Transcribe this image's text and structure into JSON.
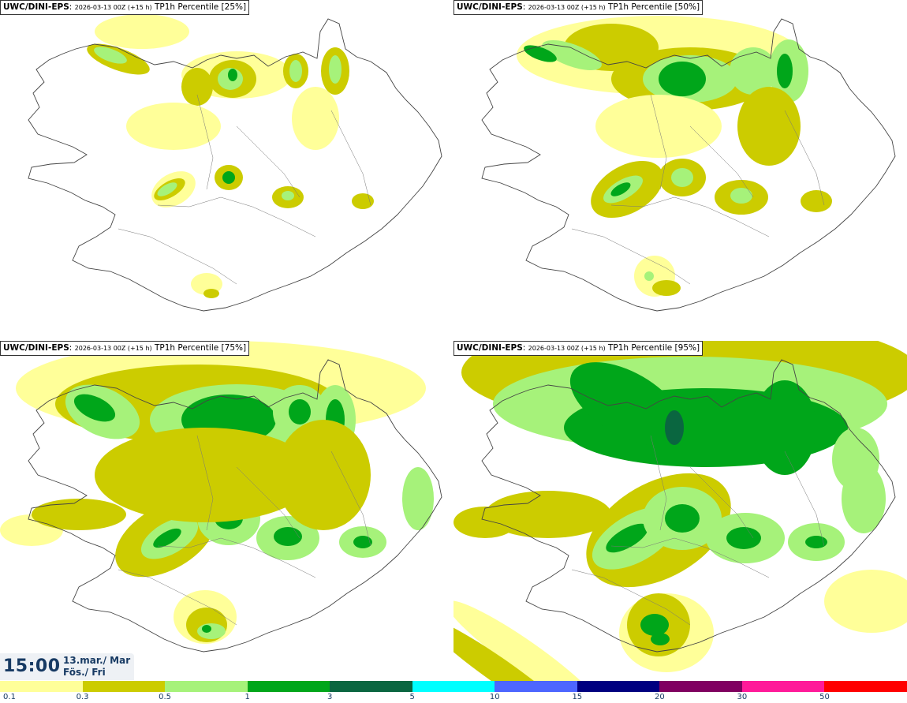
{
  "panels": [
    {
      "model": "UWC/DINI-EPS",
      "run": "2026-03-13 00Z (+15 h)",
      "product": "TP1h Percentile [25%]",
      "intensity": 0
    },
    {
      "model": "UWC/DINI-EPS",
      "run": "2026-03-13 00Z (+15 h)",
      "product": "TP1h Percentile [50%]",
      "intensity": 1
    },
    {
      "model": "UWC/DINI-EPS",
      "run": "2026-03-13 00Z (+15 h)",
      "product": "TP1h Percentile [75%]",
      "intensity": 2
    },
    {
      "model": "UWC/DINI-EPS",
      "run": "2026-03-13 00Z (+15 h)",
      "product": "TP1h Percentile [95%]",
      "intensity": 3
    }
  ],
  "valid_time": {
    "time": "15:00",
    "date_line1": "13.mar./ Mar",
    "date_line2": "Fös./ Fri"
  },
  "legend": {
    "labels": [
      "0.1",
      "0.3",
      "0.5",
      "1",
      "3",
      "5",
      "10",
      "15",
      "20",
      "30",
      "50"
    ],
    "colors": [
      "#ffff99",
      "#cccc00",
      "#a6f27a",
      "#00a61a",
      "#0a6640",
      "#00ffff",
      "#4d66ff",
      "#000080",
      "#800060",
      "#ff1a99",
      "#ff0000"
    ]
  },
  "colors": {
    "coast": "#444444",
    "time_text": "#173a63"
  }
}
